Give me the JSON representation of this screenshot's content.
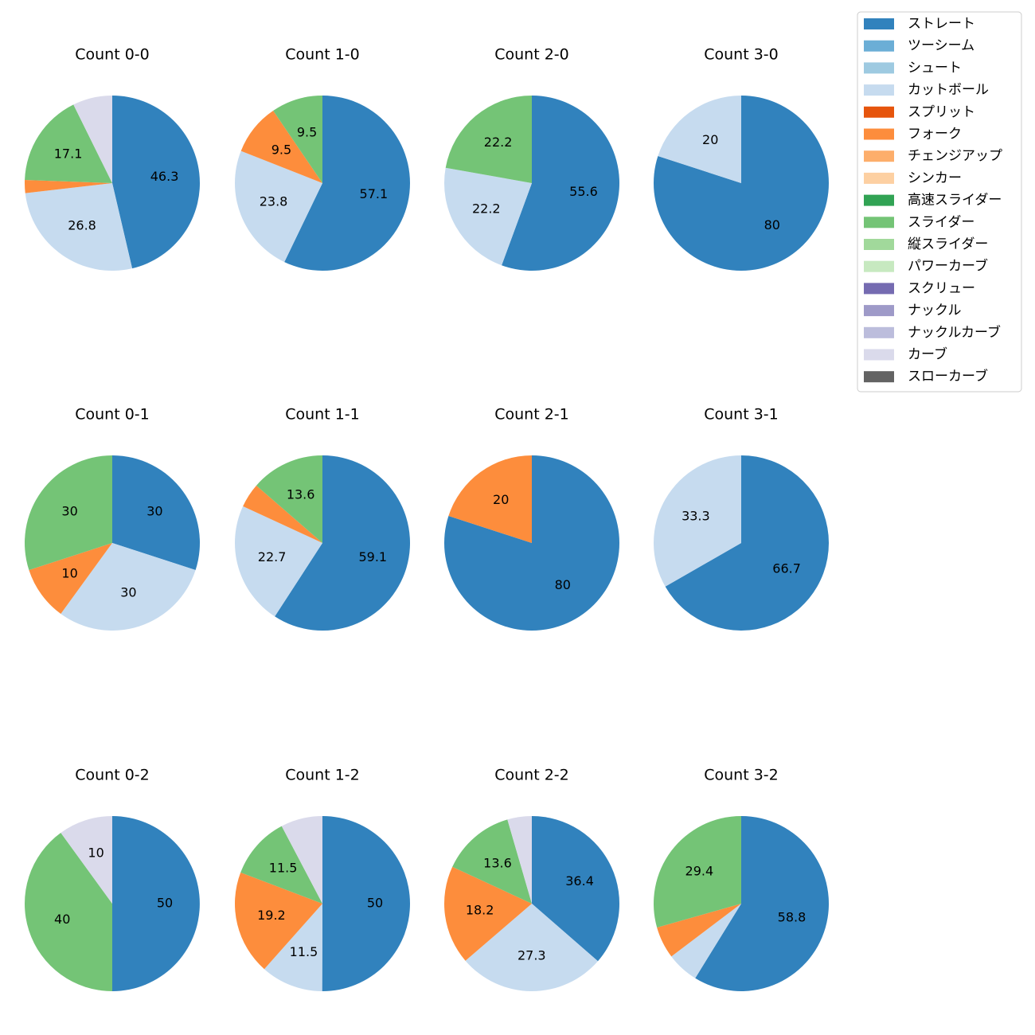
{
  "chart_data": [
    {
      "type": "pie",
      "title": "Count 0-0",
      "values": [
        46.3,
        26.8,
        2.4,
        17.1,
        7.3
      ],
      "colors": [
        "#3182bd",
        "#c6dbef",
        "#fd8d3c",
        "#74c476",
        "#dadaeb"
      ]
    },
    {
      "type": "pie",
      "title": "Count 1-0",
      "values": [
        57.1,
        23.8,
        9.5,
        9.5
      ],
      "colors": [
        "#3182bd",
        "#c6dbef",
        "#fd8d3c",
        "#74c476"
      ]
    },
    {
      "type": "pie",
      "title": "Count 2-0",
      "values": [
        55.6,
        22.2,
        22.2
      ],
      "colors": [
        "#3182bd",
        "#c6dbef",
        "#74c476"
      ]
    },
    {
      "type": "pie",
      "title": "Count 3-0",
      "values": [
        80.0,
        20.0
      ],
      "colors": [
        "#3182bd",
        "#c6dbef"
      ]
    },
    {
      "type": "pie",
      "title": "Count 0-1",
      "values": [
        30.0,
        30.0,
        10.0,
        30.0
      ],
      "colors": [
        "#3182bd",
        "#c6dbef",
        "#fd8d3c",
        "#74c476"
      ]
    },
    {
      "type": "pie",
      "title": "Count 1-1",
      "values": [
        59.1,
        22.7,
        4.5,
        13.6
      ],
      "colors": [
        "#3182bd",
        "#c6dbef",
        "#fd8d3c",
        "#74c476"
      ]
    },
    {
      "type": "pie",
      "title": "Count 2-1",
      "values": [
        80.0,
        20.0
      ],
      "colors": [
        "#3182bd",
        "#fd8d3c"
      ]
    },
    {
      "type": "pie",
      "title": "Count 3-1",
      "values": [
        66.7,
        33.3
      ],
      "colors": [
        "#3182bd",
        "#c6dbef"
      ]
    },
    {
      "type": "pie",
      "title": "Count 0-2",
      "values": [
        50.0,
        40.0,
        10.0
      ],
      "colors": [
        "#3182bd",
        "#74c476",
        "#dadaeb"
      ]
    },
    {
      "type": "pie",
      "title": "Count 1-2",
      "values": [
        50.0,
        11.5,
        19.2,
        11.5,
        7.7
      ],
      "colors": [
        "#3182bd",
        "#c6dbef",
        "#fd8d3c",
        "#74c476",
        "#dadaeb"
      ]
    },
    {
      "type": "pie",
      "title": "Count 2-2",
      "values": [
        36.4,
        27.3,
        18.2,
        13.6,
        4.5
      ],
      "colors": [
        "#3182bd",
        "#c6dbef",
        "#fd8d3c",
        "#74c476",
        "#dadaeb"
      ]
    },
    {
      "type": "pie",
      "title": "Count 3-2",
      "values": [
        58.8,
        5.9,
        5.9,
        29.4
      ],
      "colors": [
        "#3182bd",
        "#c6dbef",
        "#fd8d3c",
        "#74c476"
      ]
    }
  ],
  "legend": {
    "items": [
      {
        "name": "ストレート",
        "color": "#3182bd"
      },
      {
        "name": "ツーシーム",
        "color": "#6baed6"
      },
      {
        "name": "シュート",
        "color": "#9ecae1"
      },
      {
        "name": "カットボール",
        "color": "#c6dbef"
      },
      {
        "name": "スプリット",
        "color": "#e6550d"
      },
      {
        "name": "フォーク",
        "color": "#fd8d3c"
      },
      {
        "name": "チェンジアップ",
        "color": "#fdae6b"
      },
      {
        "name": "シンカー",
        "color": "#fdd0a2"
      },
      {
        "name": "高速スライダー",
        "color": "#31a354"
      },
      {
        "name": "スライダー",
        "color": "#74c476"
      },
      {
        "name": "縦スライダー",
        "color": "#a1d99b"
      },
      {
        "name": "パワーカーブ",
        "color": "#c7e9c0"
      },
      {
        "name": "スクリュー",
        "color": "#756bb1"
      },
      {
        "name": "ナックル",
        "color": "#9e9ac8"
      },
      {
        "name": "ナックルカーブ",
        "color": "#bcbddc"
      },
      {
        "name": "カーブ",
        "color": "#dadaeb"
      },
      {
        "name": "スローカーブ",
        "color": "#636363"
      }
    ]
  }
}
